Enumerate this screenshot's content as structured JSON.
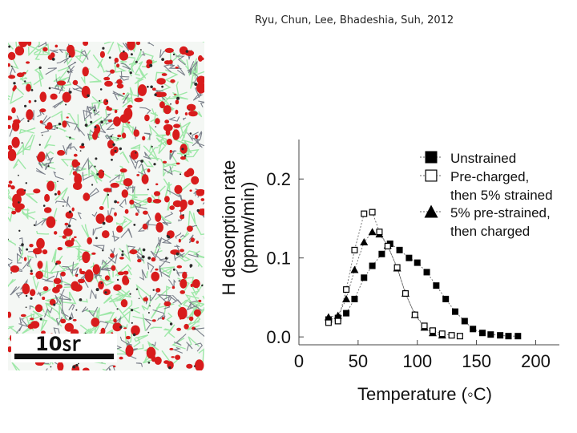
{
  "citation": "Ryu, Chun, Lee, Bhadeshia, Suh, 2012",
  "micrograph": {
    "scale_bar_label": "10㏛"
  },
  "colors": {
    "red_phase": "#d81c1c",
    "green_boundary": "#9ee8a8",
    "grey_boundary": "#7a7f8a",
    "background": "#ffffff"
  },
  "chart_data": {
    "type": "scatter",
    "title": "",
    "xlabel": "Temperature (◦C)",
    "ylabel": "H desorption rate\n(ppmw/min)",
    "ylabel_line1": "H desorption rate",
    "ylabel_line2": "(ppmw/min)",
    "xlim": [
      0,
      220
    ],
    "ylim": [
      -0.01,
      0.25
    ],
    "xticks": [
      0,
      50,
      100,
      150,
      200
    ],
    "xtick_labels": [
      "0",
      "50",
      "100",
      "150",
      "200"
    ],
    "yticks": [
      0.0,
      0.1,
      0.2
    ],
    "ytick_labels": [
      "0.0",
      "0.1",
      "0.2"
    ],
    "grid": false,
    "legend_position": "top-right",
    "series": [
      {
        "name": "Unstrained",
        "marker": "filled-square",
        "x": [
          25,
          33,
          40,
          47,
          55,
          62,
          70,
          77,
          85,
          93,
          100,
          108,
          116,
          124,
          132,
          140,
          147,
          155,
          162,
          170,
          177,
          185
        ],
        "y": [
          0.022,
          0.024,
          0.03,
          0.048,
          0.075,
          0.09,
          0.105,
          0.118,
          0.11,
          0.1,
          0.094,
          0.082,
          0.065,
          0.048,
          0.032,
          0.02,
          0.01,
          0.005,
          0.003,
          0.002,
          0.001,
          0.001
        ]
      },
      {
        "name": "Pre-charged,\nthen 5% strained",
        "legend_line1": "Pre-charged,",
        "legend_line2": "then 5% strained",
        "marker": "open-square",
        "x": [
          25,
          33,
          40,
          47,
          55,
          62,
          68,
          75,
          83,
          90,
          98,
          106,
          113,
          121,
          129,
          136
        ],
        "y": [
          0.018,
          0.02,
          0.06,
          0.11,
          0.156,
          0.158,
          0.133,
          0.115,
          0.088,
          0.055,
          0.028,
          0.014,
          0.008,
          0.004,
          0.002,
          0.001
        ]
      },
      {
        "name": "5% pre-strained,\nthen charged",
        "legend_line1": "5% pre-strained,",
        "legend_line2": "then charged",
        "marker": "filled-triangle",
        "x": [
          25,
          33,
          40,
          47,
          55,
          62,
          68,
          75,
          83,
          90,
          98,
          106,
          113,
          121
        ],
        "y": [
          0.025,
          0.027,
          0.048,
          0.085,
          0.12,
          0.133,
          0.13,
          0.116,
          0.087,
          0.055,
          0.028,
          0.012,
          0.005,
          0.002
        ]
      }
    ]
  }
}
